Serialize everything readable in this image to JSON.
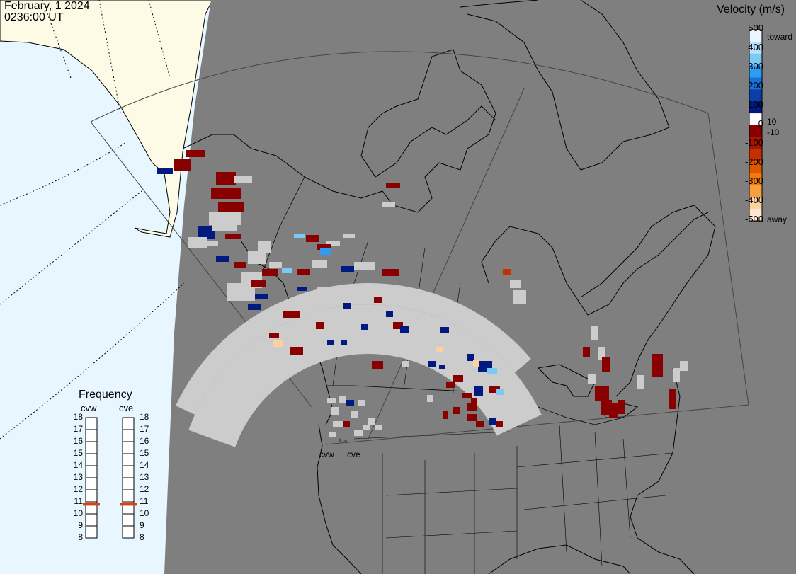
{
  "timestamp": {
    "date": "February, 1 2024",
    "time": "0236:00 UT"
  },
  "colors": {
    "background_ocean": "#e8f6ff",
    "land_daylit": "#fdfbe6",
    "night_shade": "#7f7f7f",
    "ground_scatter": "#cccccc",
    "coastline": "#000000"
  },
  "velocity_scale": {
    "title": "Velocity (m/s)",
    "ticks": [
      "500",
      "400",
      "300",
      "200",
      "100",
      "0",
      "-100",
      "-200",
      "-300",
      "-400",
      "-500"
    ],
    "inner_labels": [
      "10",
      "-10"
    ],
    "toward_label": "toward",
    "away_label": "away",
    "colors_top_to_bottom": [
      "#e8f6ff",
      "#b6e0fb",
      "#7ec8f5",
      "#2e9cf0",
      "#1a6fd8",
      "#0d3ea8",
      "#001a80",
      "#ffffff",
      "#880000",
      "#aa1500",
      "#c43000",
      "#e05500",
      "#f07a10",
      "#f8a040",
      "#fdd0a0",
      "#ffe7cf"
    ]
  },
  "frequency_panel": {
    "title": "Frequency",
    "radars": [
      "cvw",
      "cve"
    ],
    "ticks": [
      "18",
      "17",
      "16",
      "15",
      "14",
      "13",
      "12",
      "11",
      "10",
      "9",
      "8"
    ],
    "marker_color": "#e04010",
    "cvw_frequency_mhz": 10.8,
    "cve_frequency_mhz": 10.8
  },
  "radar_sites": [
    "cvw",
    "cve"
  ]
}
